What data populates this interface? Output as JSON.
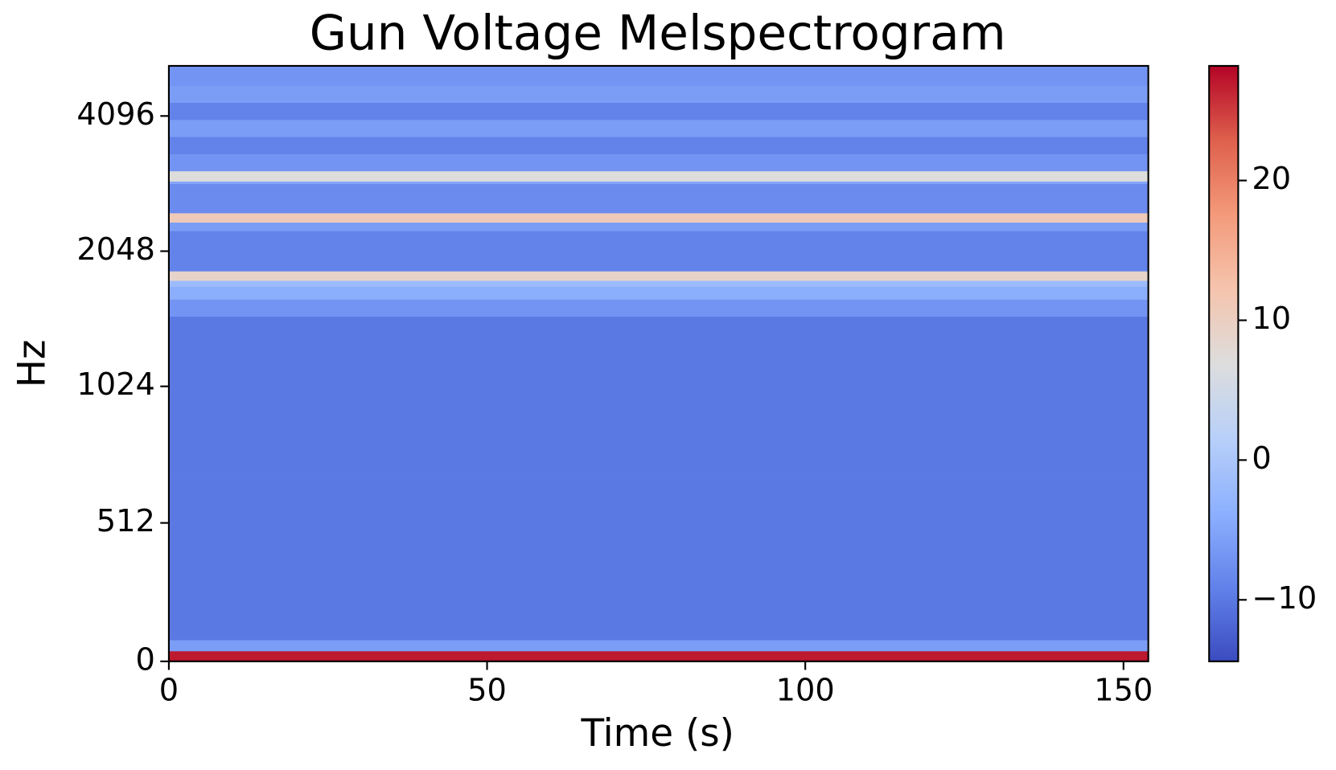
{
  "chart_data": {
    "type": "heatmap",
    "title": "Gun Voltage Melspectrogram",
    "x_label": "Time (s)",
    "y_label": "Hz",
    "xlim": [
      0,
      153.9
    ],
    "xticks": [
      0,
      50,
      100,
      150
    ],
    "ylim": [
      0,
      5296
    ],
    "yscale": "symlog",
    "ylinthresh": 1000,
    "ylogbase": 2,
    "yticks": [
      0,
      512,
      1024,
      2048,
      4096
    ],
    "y_edges": [
      0,
      38,
      79,
      674,
      1465,
      1599,
      1708,
      1761,
      1848,
      2272,
      2374,
      2490,
      2892,
      2930,
      3088,
      3371,
      3680,
      4017,
      4386,
      4787,
      5296
    ],
    "values": [
      27,
      -6,
      -10,
      -10,
      -7,
      -4,
      -2,
      9,
      -9,
      -6,
      11,
      -8,
      -5,
      7,
      -7,
      -9,
      -6,
      -9,
      -6,
      -7
    ],
    "colormap": "coolwarm",
    "clim": [
      -14.4,
      28.2
    ],
    "cticks": [
      {
        "value": -10,
        "label": "−10"
      },
      0,
      10,
      20
    ]
  }
}
